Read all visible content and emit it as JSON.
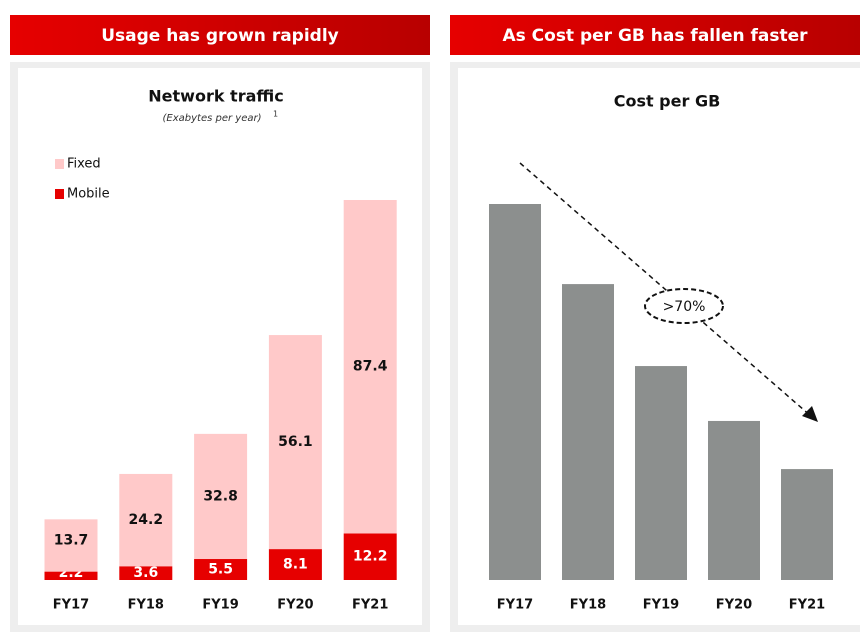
{
  "chart_data": [
    {
      "type": "stacked_bar",
      "header": "Usage has grown rapidly",
      "title": "Network traffic",
      "subtitle": "(Exabytes per year)",
      "footnote_marker": "1",
      "categories": [
        "FY17",
        "FY18",
        "FY19",
        "FY20",
        "FY21"
      ],
      "series": [
        {
          "name": "Mobile",
          "color": "#e60000",
          "values": [
            2.2,
            3.6,
            5.5,
            8.1,
            12.2
          ]
        },
        {
          "name": "Fixed",
          "color": "#ffc9c9",
          "values": [
            13.7,
            24.2,
            32.8,
            56.1,
            87.4
          ]
        }
      ]
    },
    {
      "type": "bar",
      "header": "As Cost per GB has fallen faster",
      "title": "Cost per GB",
      "categories": [
        "FY17",
        "FY18",
        "FY19",
        "FY20",
        "FY21"
      ],
      "values": [
        100,
        78.7,
        56.9,
        42.3,
        29.5
      ],
      "color": "#8c8f8e",
      "annotation": ">70%"
    }
  ]
}
